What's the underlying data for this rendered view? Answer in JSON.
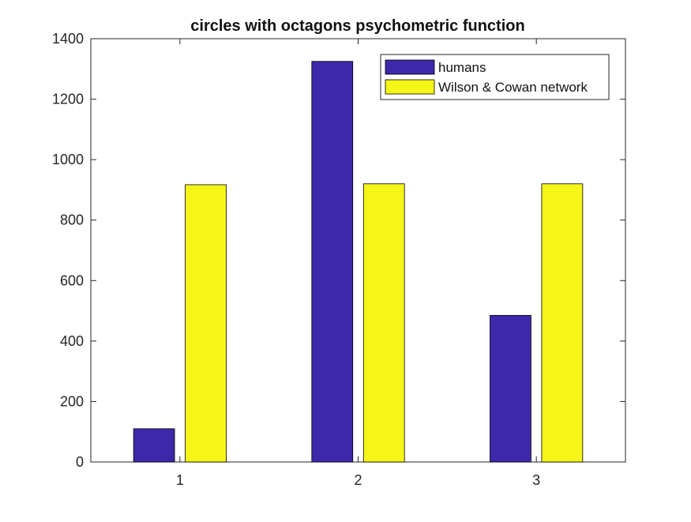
{
  "chart_data": {
    "type": "bar",
    "title": "circles with octagons psychometric function",
    "xlabel": "",
    "ylabel": "",
    "categories": [
      "1",
      "2",
      "3"
    ],
    "ylim": [
      0,
      1400
    ],
    "yticks": [
      0,
      200,
      400,
      600,
      800,
      1000,
      1200,
      1400
    ],
    "series": [
      {
        "name": "humans",
        "color": "#3c28a8",
        "values": [
          110,
          1325,
          485
        ]
      },
      {
        "name": "Wilson & Cowan network",
        "color": "#f5f518",
        "values": [
          917,
          920,
          920
        ]
      }
    ],
    "grid": false,
    "legend_position": "top-right"
  }
}
